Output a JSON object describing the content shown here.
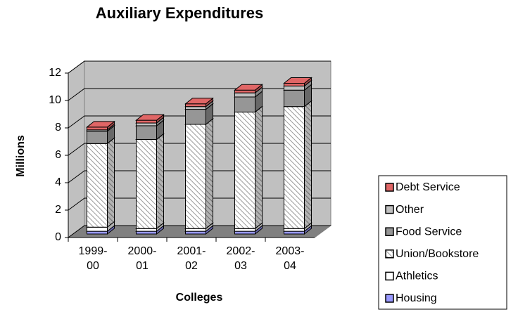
{
  "chart_data": {
    "type": "bar",
    "stacked": true,
    "three_d": true,
    "title": "Auxiliary Expenditures",
    "x_label": "Colleges",
    "y_label": "Millions",
    "categories": [
      [
        "1999-",
        "00"
      ],
      [
        "2000-",
        "01"
      ],
      [
        "2001-",
        "02"
      ],
      [
        "2002-",
        "03"
      ],
      [
        "2003-",
        "04"
      ]
    ],
    "series": [
      {
        "name": "Housing",
        "color": "#9999ff",
        "values": [
          0.2,
          0.2,
          0.2,
          0.2,
          0.2
        ]
      },
      {
        "name": "Athletics",
        "color": "#ffffff",
        "values": [
          0.3,
          0.2,
          0.2,
          0.2,
          0.2
        ]
      },
      {
        "name": "Union/Bookstore",
        "color": "#ffffff",
        "hatch": true,
        "values": [
          6.1,
          6.5,
          7.6,
          8.5,
          8.9
        ]
      },
      {
        "name": "Food Service",
        "color": "#969696",
        "values": [
          0.9,
          1.0,
          1.1,
          1.1,
          1.2
        ]
      },
      {
        "name": "Other",
        "color": "#c0c0c0",
        "values": [
          0.1,
          0.2,
          0.2,
          0.3,
          0.3
        ]
      },
      {
        "name": "Debt Service",
        "color": "#e06666",
        "values": [
          0.2,
          0.2,
          0.2,
          0.2,
          0.2
        ]
      }
    ],
    "ylim": [
      0,
      12
    ],
    "yticks": [
      0,
      2,
      4,
      6,
      8,
      10,
      12
    ],
    "grid": true,
    "legend": "right"
  }
}
